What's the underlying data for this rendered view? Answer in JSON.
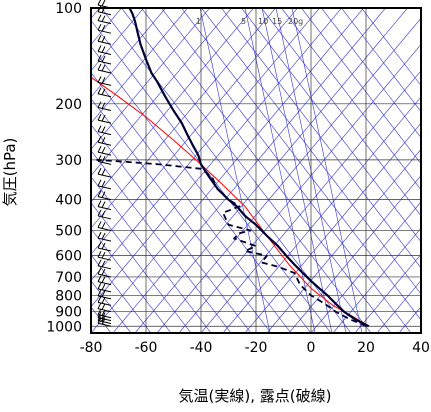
{
  "chart_data": {
    "type": "line",
    "title": "",
    "xlabel": "気温(実線), 露点(破線)",
    "ylabel": "気圧(hPa)",
    "x_ticks": [
      "-80",
      "-60",
      "-40",
      "-20",
      "0",
      "20",
      "40"
    ],
    "y_ticks": [
      "100",
      "200",
      "300",
      "400",
      "500",
      "600",
      "700",
      "800",
      "900",
      "1000"
    ],
    "xlim": [
      -80,
      40
    ],
    "ylim": [
      1050,
      100
    ],
    "y_scale": "log",
    "grid": true,
    "mixing_ratio_labels": [
      "1",
      "5",
      "10",
      "15",
      "20g"
    ],
    "colors": {
      "temperature": "#000033",
      "dewpoint": "#000033",
      "isotherm": "#3333cc",
      "parcel": "#ff0000",
      "frame": "#000000"
    },
    "series": [
      {
        "x": [
          21,
          19,
          16,
          12,
          9,
          6,
          3,
          0,
          -3,
          -6,
          -9,
          -12,
          -16,
          -20,
          -24,
          -27,
          -30,
          -34,
          -37,
          -40,
          -41,
          -43,
          -45,
          -47,
          -50,
          -53,
          -56,
          -58,
          -60,
          -62,
          -63,
          -64,
          -65,
          -66
        ],
        "y": [
          1000,
          980,
          950,
          900,
          850,
          800,
          760,
          720,
          680,
          640,
          600,
          560,
          520,
          480,
          450,
          420,
          400,
          370,
          340,
          310,
          290,
          270,
          250,
          230,
          210,
          190,
          170,
          160,
          145,
          130,
          120,
          110,
          104,
          100
        ]
      },
      {
        "x": [
          20,
          18,
          14,
          9,
          5,
          0,
          -4,
          -6,
          -12,
          -18,
          -16,
          -24,
          -20,
          -28,
          -26,
          -22,
          -30,
          -32,
          -26,
          -30,
          -34,
          -36,
          -40,
          -55,
          -66,
          -78
        ],
        "y": [
          1000,
          980,
          950,
          900,
          850,
          800,
          740,
          680,
          650,
          630,
          600,
          580,
          560,
          530,
          510,
          500,
          480,
          440,
          420,
          400,
          370,
          340,
          320,
          310,
          305,
          300
        ]
      },
      {
        "x": [
          21,
          15,
          8,
          0,
          -8,
          -16,
          -24,
          -32,
          -40,
          -50,
          -60,
          -70,
          -80
        ],
        "y": [
          1000,
          930,
          860,
          760,
          640,
          520,
          420,
          360,
          310,
          260,
          220,
          190,
          165
        ]
      }
    ]
  }
}
